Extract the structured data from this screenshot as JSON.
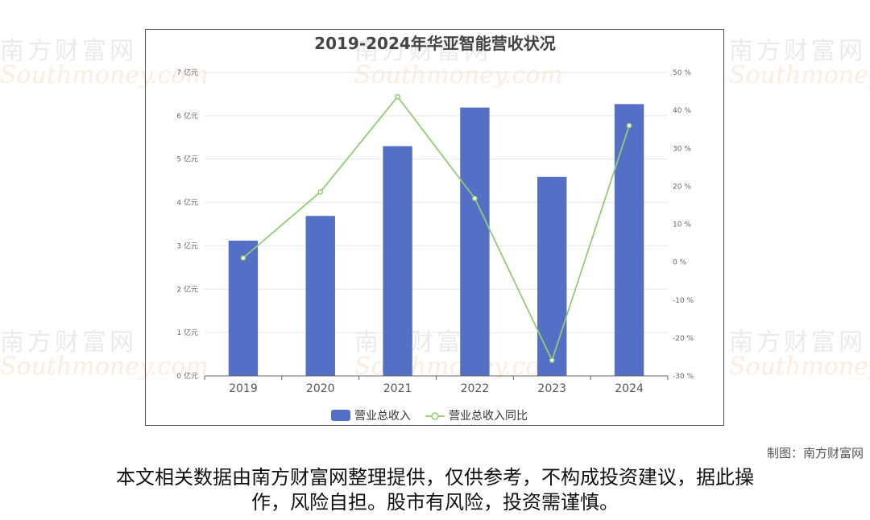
{
  "watermark": {
    "brand_cn": "南方财富网",
    "brand_en": "Southmoney.com"
  },
  "chart_data": {
    "type": "bar",
    "title": "2019-2024年华亚智能营收状况",
    "categories": [
      "2019",
      "2020",
      "2021",
      "2022",
      "2023",
      "2024"
    ],
    "series": [
      {
        "name": "营业总收入",
        "type": "bar",
        "axis": "left",
        "color": "#5470c6",
        "values": [
          3.12,
          3.69,
          5.3,
          6.19,
          4.59,
          6.27
        ]
      },
      {
        "name": "营业总收入同比",
        "type": "line",
        "axis": "right",
        "color": "#91cc75",
        "values": [
          1.1,
          18.5,
          43.6,
          16.8,
          -25.9,
          36.0
        ]
      }
    ],
    "y_left": {
      "min": 0,
      "max": 7,
      "step": 1,
      "unit": "亿元",
      "ticks": [
        "0 亿元",
        "1 亿元",
        "2 亿元",
        "3 亿元",
        "4 亿元",
        "5 亿元",
        "6 亿元",
        "7 亿元"
      ]
    },
    "y_right": {
      "min": -30,
      "max": 50,
      "step": 10,
      "unit": "%",
      "ticks": [
        "-30 %",
        "-20 %",
        "-10 %",
        "0 %",
        "10 %",
        "20 %",
        "30 %",
        "40 %",
        "50 %"
      ]
    },
    "grid": true,
    "legend_position": "bottom"
  },
  "footer": {
    "credit": "制图：南方财富网",
    "disclaimer_line1": "本文相关数据由南方财富网整理提供，仅供参考，不构成投资建议，据此操",
    "disclaimer_line2": "作，风险自担。股市有风险，投资需谨慎。"
  }
}
